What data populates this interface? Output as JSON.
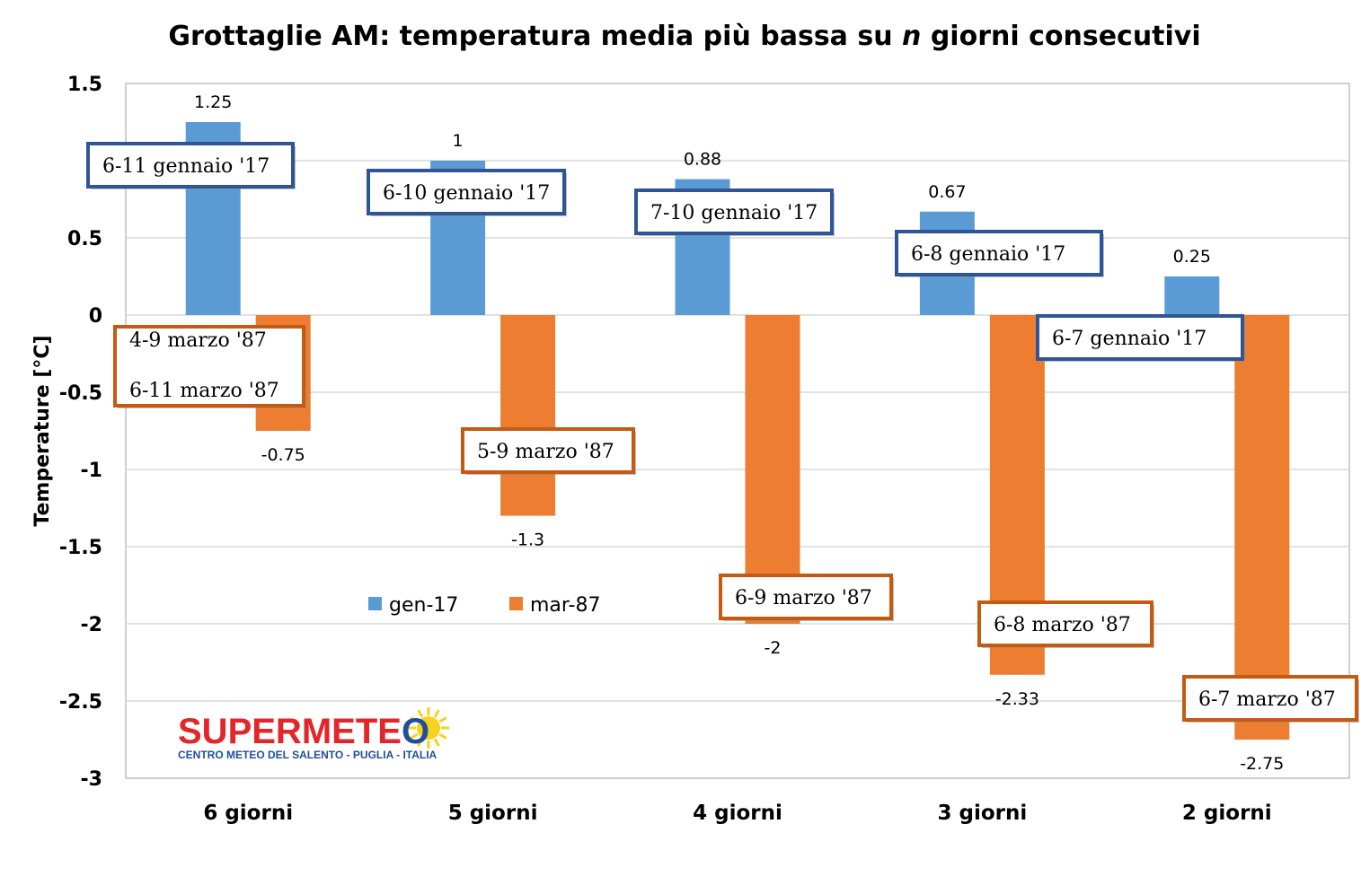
{
  "chart_data": {
    "type": "bar",
    "title": "Grottaglie AM: temperatura media più bassa su n giorni consecutivi",
    "title_parts": [
      "Grottaglie AM: temperatura media più bassa su ",
      "n",
      " giorni consecutivi"
    ],
    "xlabel": "",
    "ylabel": "Temperature [°C]",
    "ylim": [
      -3,
      1.5
    ],
    "yticks": [
      "1.5",
      "0.5",
      "0",
      "-0.5",
      "-1",
      "-1.5",
      "-2",
      "-2.5",
      "-3"
    ],
    "ytick_values": [
      1.5,
      0.5,
      0,
      -0.5,
      -1,
      -1.5,
      -2,
      -2.5,
      -3
    ],
    "grid": true,
    "legend_position": "inside-lower-left",
    "categories": [
      "6 giorni",
      "5 giorni",
      "4 giorni",
      "3 giorni",
      "2 giorni"
    ],
    "series": [
      {
        "name": "gen-17",
        "color": "#5b9bd5",
        "values": [
          1.25,
          1,
          0.88,
          0.67,
          0.25
        ],
        "labels": [
          "1.25",
          "1",
          "0.88",
          "0.67",
          "0.25"
        ],
        "period_labels": [
          "6-11 gennaio '17",
          "6-10 gennaio '17",
          "7-10 gennaio '17",
          "6-8 gennaio '17",
          "6-7 gennaio '17"
        ],
        "box_border": "#2f5597"
      },
      {
        "name": "mar-87",
        "color": "#ed7d31",
        "values": [
          -0.75,
          -1.3,
          -2,
          -2.33,
          -2.75
        ],
        "labels": [
          "-0.75",
          "-1.3",
          "-2",
          "-2.33",
          "-2.75"
        ],
        "period_labels": [
          [
            "4-9  marzo '87",
            "6-11 marzo '87"
          ],
          "5-9  marzo '87",
          "6-9  marzo '87",
          "6-8  marzo '87",
          "6-7  marzo '87"
        ],
        "box_border": "#c55a11"
      }
    ]
  },
  "logo": {
    "name_red": "SUPERMETE",
    "name_blue": "O",
    "subtitle": "CENTRO METEO DEL SALENTO - PUGLIA - ITALIA",
    "red": "#e3262a",
    "blue": "#1f4e9c",
    "sun": "#f7d21e"
  }
}
